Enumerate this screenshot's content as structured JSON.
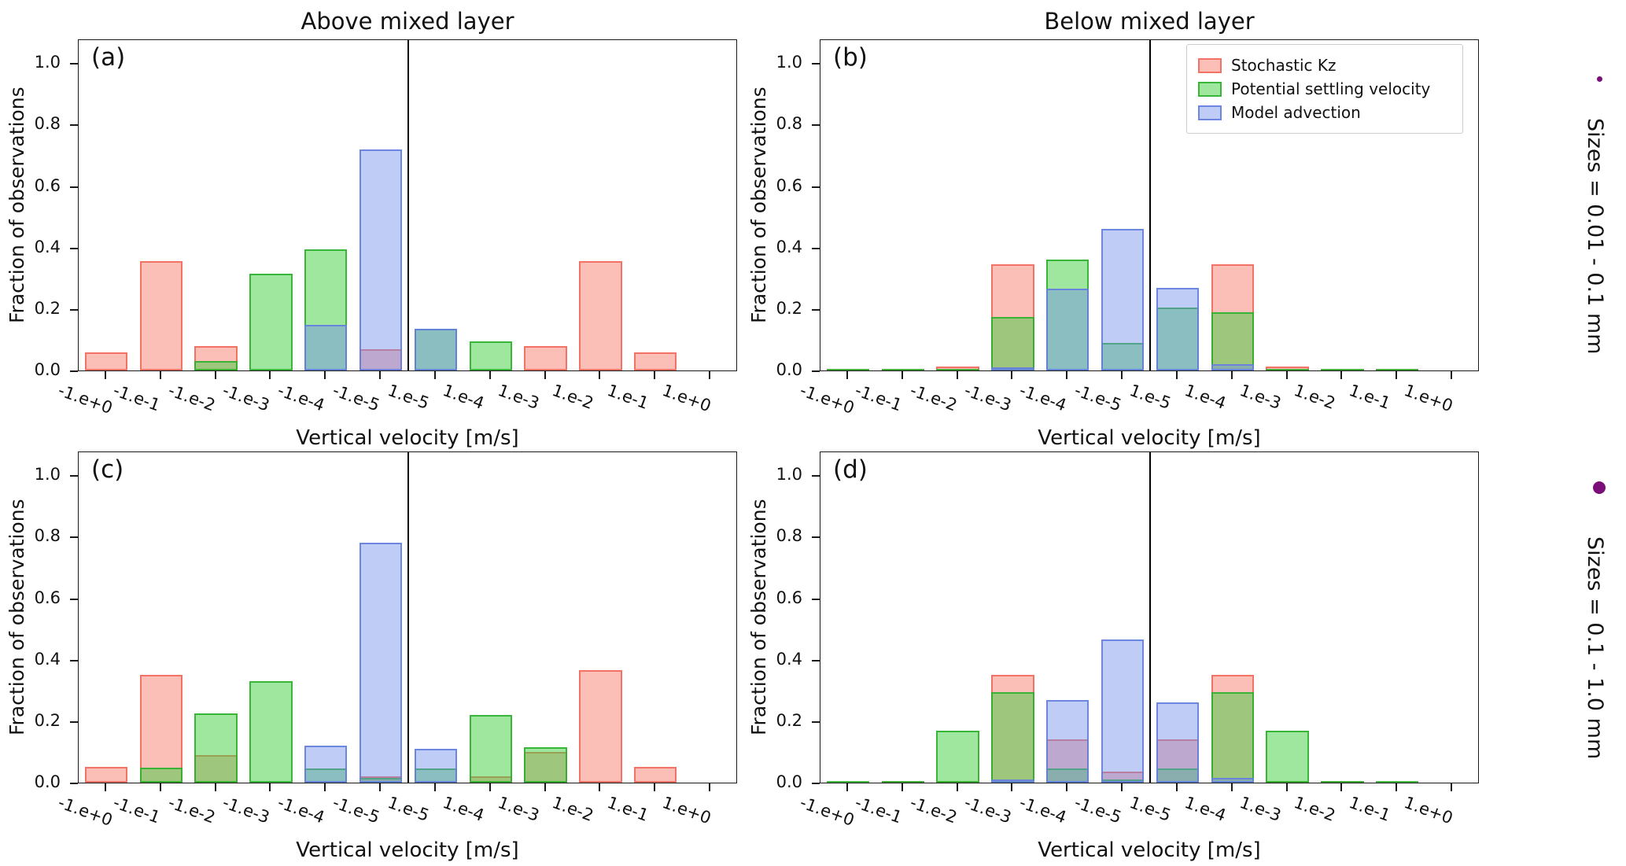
{
  "figure": {
    "column_titles": [
      "Above mixed layer",
      "Below mixed layer"
    ],
    "x_axis_label": "Vertical velocity [m/s]",
    "y_axis_label": "Fraction of observations",
    "x_tick_labels": [
      "-1.e+0",
      "-1.e-1",
      "-1.e-2",
      "-1.e-3",
      "-1.e-4",
      "-1.e-5",
      "1.e-5",
      "1.e-4",
      "1.e-3",
      "1.e-2",
      "1.e-1",
      "1.e+0"
    ],
    "y_tick_labels": [
      "0.0",
      "0.2",
      "0.4",
      "0.6",
      "0.8",
      "1.0"
    ],
    "legend_labels": [
      "Stochastic Kz",
      "Potential settling velocity",
      "Model advection"
    ],
    "series_styles": [
      {
        "name": "Stochastic Kz",
        "fill": "rgba(250,128,114,0.5)",
        "edge": "rgba(242,105,93,0.9)"
      },
      {
        "name": "Potential settling velocity",
        "fill": "rgba(63,205,63,0.5)",
        "edge": "rgba(45,175,45,0.9)"
      },
      {
        "name": "Model advection",
        "fill": "rgba(112,142,235,0.45)",
        "edge": "rgba(100,126,222,0.9)"
      }
    ],
    "zero_line_color": "#000000"
  },
  "chart_data": [
    {
      "type": "bar",
      "panel": "(a)",
      "title": "Above mixed layer",
      "xlabel": "Vertical velocity [m/s]",
      "ylabel": "Fraction of observations",
      "categories": [
        "-1.e+0",
        "-1.e-1",
        "-1.e-2",
        "-1.e-3",
        "-1.e-4",
        "-1.e-5",
        "1.e-5",
        "1.e-4",
        "1.e-3",
        "1.e-2",
        "1.e-1",
        "1.e+0"
      ],
      "ylim": [
        0,
        1.08
      ],
      "grid": false,
      "series": [
        {
          "name": "Stochastic Kz",
          "values": [
            0.06,
            0.355,
            0.08,
            0,
            0,
            0.07,
            0,
            0,
            0.08,
            0.355,
            0.06,
            0
          ]
        },
        {
          "name": "Potential settling velocity",
          "values": [
            0,
            0,
            0.03,
            0.315,
            0.395,
            0,
            0.135,
            0.095,
            0,
            0,
            0,
            0
          ]
        },
        {
          "name": "Model advection",
          "values": [
            0,
            0,
            0,
            0,
            0.148,
            0.72,
            0.135,
            0,
            0,
            0,
            0,
            0
          ]
        }
      ]
    },
    {
      "type": "bar",
      "panel": "(b)",
      "title": "Below mixed layer",
      "xlabel": "Vertical velocity [m/s]",
      "ylabel": "Fraction of observations",
      "categories": [
        "-1.e+0",
        "-1.e-1",
        "-1.e-2",
        "-1.e-3",
        "-1.e-4",
        "-1.e-5",
        "1.e-5",
        "1.e-4",
        "1.e-3",
        "1.e-2",
        "1.e-1",
        "1.e+0"
      ],
      "ylim": [
        0,
        1.08
      ],
      "grid": false,
      "legend_position": "upper right",
      "series": [
        {
          "name": "Stochastic Kz",
          "values": [
            0.005,
            0.005,
            0.012,
            0.345,
            0,
            0,
            0,
            0.345,
            0.012,
            0.005,
            0.005,
            0
          ]
        },
        {
          "name": "Potential settling velocity",
          "values": [
            0.004,
            0.004,
            0.004,
            0.175,
            0.36,
            0.09,
            0.205,
            0.19,
            0.004,
            0.004,
            0.004,
            0
          ]
        },
        {
          "name": "Model advection",
          "values": [
            0,
            0,
            0,
            0.01,
            0.265,
            0.46,
            0.27,
            0.02,
            0,
            0,
            0,
            0
          ]
        }
      ]
    },
    {
      "type": "bar",
      "panel": "(c)",
      "title": "Above mixed layer",
      "xlabel": "Vertical velocity [m/s]",
      "ylabel": "Fraction of observations",
      "categories": [
        "-1.e+0",
        "-1.e-1",
        "-1.e-2",
        "-1.e-3",
        "-1.e-4",
        "-1.e-5",
        "1.e-5",
        "1.e-4",
        "1.e-3",
        "1.e-2",
        "1.e-1",
        "1.e+0"
      ],
      "ylim": [
        0,
        1.08
      ],
      "grid": false,
      "series": [
        {
          "name": "Stochastic Kz",
          "values": [
            0.05,
            0.35,
            0.09,
            0,
            0,
            0.02,
            0,
            0.02,
            0.1,
            0.365,
            0.05,
            0
          ]
        },
        {
          "name": "Potential settling velocity",
          "values": [
            0,
            0.048,
            0.225,
            0.33,
            0.045,
            0.015,
            0.045,
            0.22,
            0.115,
            0,
            0,
            0
          ]
        },
        {
          "name": "Model advection",
          "values": [
            0,
            0,
            0,
            0,
            0.12,
            0.78,
            0.11,
            0,
            0,
            0,
            0,
            0
          ]
        }
      ]
    },
    {
      "type": "bar",
      "panel": "(d)",
      "title": "Below mixed layer",
      "xlabel": "Vertical velocity [m/s]",
      "ylabel": "Fraction of observations",
      "categories": [
        "-1.e+0",
        "-1.e-1",
        "-1.e-2",
        "-1.e-3",
        "-1.e-4",
        "-1.e-5",
        "1.e-5",
        "1.e-4",
        "1.e-3",
        "1.e-2",
        "1.e-1",
        "1.e+0"
      ],
      "ylim": [
        0,
        1.08
      ],
      "grid": false,
      "series": [
        {
          "name": "Stochastic Kz",
          "values": [
            0,
            0.004,
            0.004,
            0.35,
            0.14,
            0.035,
            0.14,
            0.35,
            0.004,
            0.004,
            0,
            0
          ]
        },
        {
          "name": "Potential settling velocity",
          "values": [
            0.004,
            0.004,
            0.17,
            0.295,
            0.045,
            0.01,
            0.045,
            0.295,
            0.17,
            0.004,
            0.004,
            0
          ]
        },
        {
          "name": "Model advection",
          "values": [
            0,
            0,
            0,
            0.01,
            0.27,
            0.465,
            0.26,
            0.015,
            0,
            0,
            0,
            0
          ]
        }
      ]
    }
  ],
  "side_annotations": [
    {
      "label": "Sizes = 0.01 - 0.1 mm",
      "dot": "small",
      "color": "#7a0f7a"
    },
    {
      "label": "Sizes = 0.1 - 1.0 mm",
      "dot": "large",
      "color": "#7a0f7a"
    }
  ]
}
